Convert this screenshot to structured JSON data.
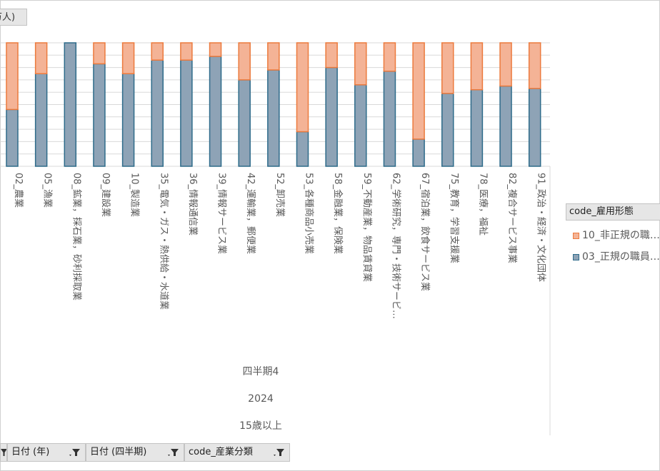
{
  "value_field_button": {
    "label": "万人)"
  },
  "chart_data": {
    "type": "bar",
    "stacked": true,
    "percent_stacked": true,
    "categories": [
      "02_農業",
      "05_漁業",
      "08_鉱業，採石業，砂利採取業",
      "09_建設業",
      "10_製造業",
      "35_電気・ガス・熱供給・水道業",
      "36_情報通信業",
      "39_情報サービス業",
      "42_運輸業，郵便業",
      "52_卸売業",
      "53_各種商品小売業",
      "58_金融業，保険業",
      "59_不動産業，物品賃貸業",
      "62_学術研究，専門・技術サービ…",
      "67_宿泊業，飲食サービス業",
      "75_教育，学習支援業",
      "78_医療，福祉",
      "82_複合サービス事業",
      "91_政治・経済・文化団体"
    ],
    "series": [
      {
        "name": "03_正規の職員…",
        "values": [
          46,
          75,
          100,
          83,
          75,
          86,
          86,
          89,
          70,
          78,
          28,
          80,
          66,
          77,
          22,
          59,
          62,
          65,
          63
        ]
      },
      {
        "name": "10_非正規の職…",
        "values": [
          54,
          25,
          0,
          17,
          25,
          14,
          14,
          11,
          30,
          22,
          72,
          20,
          34,
          23,
          78,
          41,
          38,
          35,
          37
        ]
      }
    ],
    "group_labels": [
      "四半期4",
      "2024",
      "15歳以上"
    ],
    "ylim": [
      0,
      100
    ],
    "grid": true,
    "legend_position": "right",
    "legend_title": "code_雇用形態"
  },
  "colors": {
    "regular_fill": "#8ea3b6",
    "regular_border": "#2e6b8a",
    "nonregular_fill": "#f4b396",
    "nonregular_border": "#ec7a3d",
    "grid": "#d9d9d9"
  },
  "filters": [
    {
      "label": ""
    },
    {
      "label": "日付 (年)"
    },
    {
      "label": "日付 (四半期)"
    },
    {
      "label": "code_産業分類"
    }
  ]
}
